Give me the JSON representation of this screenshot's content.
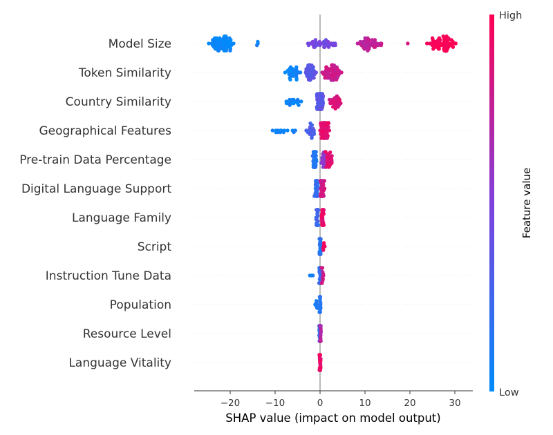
{
  "chart_data": {
    "type": "scatter",
    "subtype": "shap-beeswarm",
    "xlabel": "SHAP value (impact on model output)",
    "ylabel": "",
    "xlim": [
      -28,
      34
    ],
    "xticks": [
      -20,
      -10,
      0,
      10,
      20,
      30
    ],
    "xtick_labels": [
      "−20",
      "−10",
      "0",
      "10",
      "20",
      "30"
    ],
    "features": [
      "Model Size",
      "Token Similarity",
      "Country Similarity",
      "Geographical Features",
      "Pre-train Data Percentage",
      "Digital Language Support",
      "Language Family",
      "Script",
      "Instruction Tune Data",
      "Population",
      "Resource Level",
      "Language Vitality"
    ],
    "series": [
      {
        "feature": "Model Size",
        "clusters": [
          {
            "center": -22,
            "spread": 3.5,
            "feature_value": 0.02,
            "count": 70
          },
          {
            "center": -14,
            "spread": 0.4,
            "feature_value": 0.05,
            "count": 3
          },
          {
            "center": 0,
            "spread": 4,
            "feature_value": 0.45,
            "count": 40
          },
          {
            "center": 11,
            "spread": 3.2,
            "feature_value": 0.75,
            "count": 45
          },
          {
            "center": 19.5,
            "spread": 0.2,
            "feature_value": 0.85,
            "count": 1
          },
          {
            "center": 27,
            "spread": 3.5,
            "feature_value": 0.98,
            "count": 65
          }
        ]
      },
      {
        "feature": "Token Similarity",
        "clusters": [
          {
            "center": -6,
            "spread": 2.2,
            "feature_value": 0.05,
            "count": 30
          },
          {
            "center": -2,
            "spread": 1.5,
            "feature_value": 0.35,
            "count": 35
          },
          {
            "center": 2.5,
            "spread": 2.5,
            "feature_value": 0.8,
            "count": 60
          }
        ]
      },
      {
        "feature": "Country Similarity",
        "clusters": [
          {
            "center": -6,
            "spread": 2.2,
            "feature_value": 0.05,
            "count": 20
          },
          {
            "center": 0,
            "spread": 0.9,
            "feature_value": 0.35,
            "count": 70
          },
          {
            "center": 3.5,
            "spread": 1.8,
            "feature_value": 0.85,
            "count": 30
          }
        ]
      },
      {
        "feature": "Geographical Features",
        "clusters": [
          {
            "center": -8,
            "spread": 3.5,
            "feature_value": 0.05,
            "count": 14
          },
          {
            "center": -2,
            "spread": 1.3,
            "feature_value": 0.3,
            "count": 20
          },
          {
            "center": 1,
            "spread": 1.2,
            "feature_value": 0.9,
            "count": 60
          }
        ]
      },
      {
        "feature": "Pre-train Data Percentage",
        "clusters": [
          {
            "center": -1.2,
            "spread": 0.5,
            "feature_value": 0.15,
            "count": 40
          },
          {
            "center": 0.8,
            "spread": 0.8,
            "feature_value": 0.55,
            "count": 25
          },
          {
            "center": 2,
            "spread": 1,
            "feature_value": 0.9,
            "count": 25
          }
        ]
      },
      {
        "feature": "Digital Language Support",
        "clusters": [
          {
            "center": -0.8,
            "spread": 0.5,
            "feature_value": 0.2,
            "count": 40
          },
          {
            "center": 0.5,
            "spread": 0.6,
            "feature_value": 0.8,
            "count": 40
          }
        ]
      },
      {
        "feature": "Language Family",
        "clusters": [
          {
            "center": -0.6,
            "spread": 0.3,
            "feature_value": 0.25,
            "count": 45
          },
          {
            "center": 0.6,
            "spread": 0.3,
            "feature_value": 0.92,
            "count": 40
          }
        ]
      },
      {
        "feature": "Script",
        "clusters": [
          {
            "center": 0,
            "spread": 0.2,
            "feature_value": 0.15,
            "count": 50
          },
          {
            "center": 0.8,
            "spread": 0.3,
            "feature_value": 0.95,
            "count": 6
          }
        ]
      },
      {
        "feature": "Instruction Tune Data",
        "clusters": [
          {
            "center": -1.8,
            "spread": 0.6,
            "feature_value": 0.05,
            "count": 3
          },
          {
            "center": 0,
            "spread": 0.3,
            "feature_value": 0.2,
            "count": 40
          },
          {
            "center": 0.5,
            "spread": 0.3,
            "feature_value": 0.8,
            "count": 12
          }
        ]
      },
      {
        "feature": "Population",
        "clusters": [
          {
            "center": -0.9,
            "spread": 0.4,
            "feature_value": 0.1,
            "count": 6
          },
          {
            "center": 0,
            "spread": 0.2,
            "feature_value": 0.15,
            "count": 40
          }
        ]
      },
      {
        "feature": "Resource Level",
        "clusters": [
          {
            "center": -0.1,
            "spread": 0.15,
            "feature_value": 0.2,
            "count": 30
          },
          {
            "center": 0.1,
            "spread": 0.15,
            "feature_value": 0.7,
            "count": 30
          }
        ]
      },
      {
        "feature": "Language Vitality",
        "clusters": [
          {
            "center": 0,
            "spread": 0.2,
            "feature_value": 0.92,
            "count": 60
          }
        ]
      }
    ],
    "colorbar": {
      "title": "Feature value",
      "high_label": "High",
      "low_label": "Low",
      "low_color": "#008bfb",
      "mid_color": "#7f41dd",
      "high_color": "#ff0052"
    },
    "zero_line_color": "#999999",
    "grid": false,
    "legend": "right"
  }
}
